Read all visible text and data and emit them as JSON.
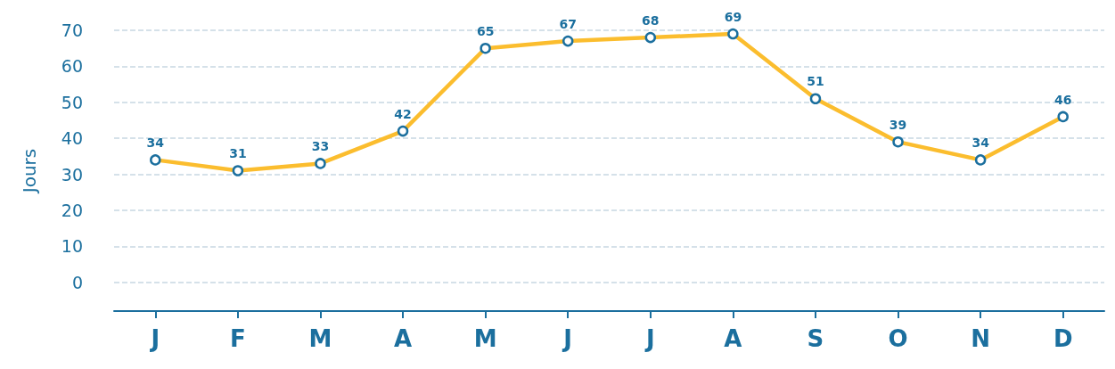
{
  "chart_data": {
    "type": "line",
    "ylabel": "Jours",
    "categories": [
      "J",
      "F",
      "M",
      "A",
      "M",
      "J",
      "J",
      "A",
      "S",
      "O",
      "N",
      "D"
    ],
    "series": [
      {
        "color": "#fbbd2e",
        "values": [
          34,
          31,
          33,
          42,
          65,
          67,
          68,
          69,
          51,
          39,
          34,
          46
        ]
      }
    ],
    "ylim": [
      -8,
      70
    ],
    "yticks": [
      0,
      10,
      20,
      30,
      40,
      50,
      60,
      70
    ],
    "grid": "y",
    "marker": "circle",
    "line_style": "solid",
    "data_labels": true
  }
}
